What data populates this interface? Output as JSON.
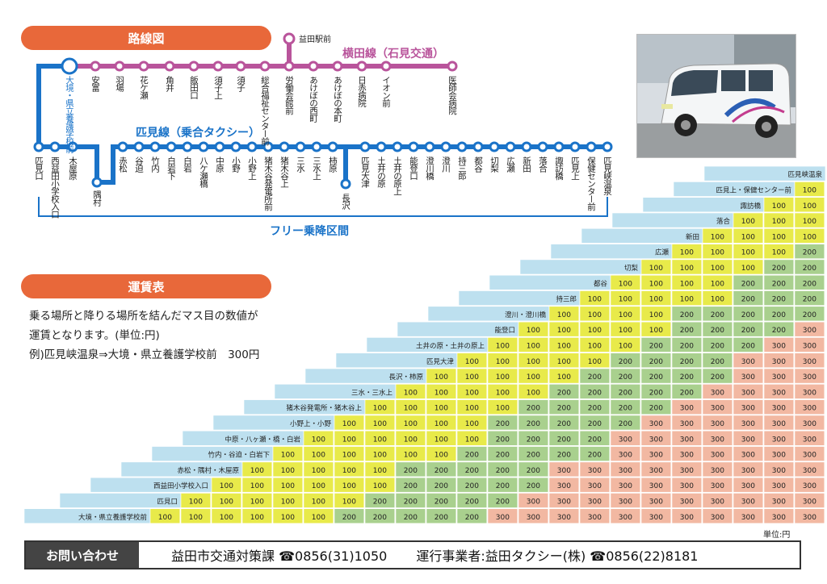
{
  "route_section": {
    "heading": "路線図",
    "yokota_line_title": "横田線（石見交通）",
    "hikimi_line_title": "匹見線（乗合タクシー）",
    "free_zone_label": "フリー乗降区間",
    "terminal_top": "益田駅前",
    "line_colors": {
      "hikimi": "#1a73c8",
      "yokota": "#b9549b"
    },
    "yokota_stops": [
      "大境・県立養護学校前",
      "安富",
      "羽場",
      "花ケ瀬",
      "角井",
      "飯田口",
      "須子上",
      "須子",
      "総合福祉センター前",
      "労働会館前",
      "あけぼの西町",
      "あけぼの本町",
      "日赤病院",
      "イオン前",
      "医師会病院"
    ],
    "hikimi_stops": [
      "匹見口",
      "西益田小学校入口",
      "木屋原",
      "隅村",
      "赤松",
      "谷迫",
      "竹内",
      "白岩下",
      "白岩",
      "八ケ瀬橋",
      "中原",
      "小野",
      "小野上",
      "猪木谷発電所前",
      "猪木谷上",
      "三水",
      "三水上",
      "柿原",
      "長沢",
      "匹見大津",
      "土井の原",
      "土井の原上",
      "能登口",
      "澄川橋",
      "澄川",
      "持三郎",
      "都谷",
      "切梨",
      "広瀬",
      "新田",
      "落合",
      "諏訪橋",
      "匹見上",
      "保健センター前",
      "匹見峡温泉"
    ]
  },
  "fare_section": {
    "heading": "運賃表",
    "note_line1": "乗る場所と降りる場所を結んだマス目の数値が",
    "note_line2": "運賃となります。(単位:円)",
    "example": "例)匹見峡温泉⇒大境・県立養護学校前　300円",
    "unit_label": "単位:円",
    "colors": {
      "label": "#bde0ef",
      "fare100": "#e8ea4a",
      "fare200": "#a9d08e",
      "fare300": "#f2b8a2"
    },
    "stations": [
      "大境・県立養護学校前",
      "匹見口",
      "西益田小学校入口",
      "赤松・隅村・木屋原",
      "竹内・谷迫・白岩下",
      "中原・八ヶ瀬・橋・白岩",
      "小野上・小野",
      "猪木谷発電所・猪木谷上",
      "三水・三水上",
      "長沢・柿原",
      "匹見大津",
      "土井の原・土井の原上",
      "能登口",
      "澄川・澄川橋",
      "持三郎",
      "都谷",
      "切梨",
      "広瀬",
      "新田",
      "落合",
      "諏訪橋",
      "匹見上・保健センター前",
      "匹見峡温泉"
    ],
    "fares": [
      [],
      [
        100
      ],
      [
        100,
        100
      ],
      [
        100,
        100,
        100
      ],
      [
        100,
        100,
        100,
        100
      ],
      [
        100,
        100,
        100,
        100,
        100
      ],
      [
        100,
        100,
        100,
        100,
        100,
        100
      ],
      [
        200,
        100,
        100,
        100,
        100,
        100,
        100
      ],
      [
        200,
        200,
        100,
        100,
        100,
        100,
        100,
        100
      ],
      [
        200,
        200,
        200,
        200,
        100,
        100,
        100,
        100,
        100
      ],
      [
        200,
        200,
        200,
        200,
        100,
        100,
        100,
        100,
        100,
        100
      ],
      [
        200,
        200,
        200,
        200,
        200,
        100,
        100,
        100,
        100,
        100,
        100
      ],
      [
        300,
        200,
        200,
        200,
        200,
        200,
        200,
        100,
        100,
        100,
        100,
        100
      ],
      [
        300,
        300,
        200,
        200,
        200,
        200,
        200,
        200,
        100,
        100,
        100,
        100,
        100
      ],
      [
        300,
        300,
        300,
        300,
        200,
        200,
        200,
        200,
        200,
        100,
        100,
        100,
        100,
        100
      ],
      [
        300,
        300,
        300,
        300,
        200,
        200,
        200,
        200,
        200,
        200,
        100,
        100,
        100,
        100,
        100
      ],
      [
        300,
        300,
        300,
        300,
        300,
        300,
        200,
        200,
        200,
        200,
        200,
        100,
        100,
        100,
        100,
        100
      ],
      [
        300,
        300,
        300,
        300,
        300,
        300,
        300,
        200,
        200,
        200,
        200,
        200,
        100,
        100,
        100,
        100,
        100
      ],
      [
        300,
        300,
        300,
        300,
        300,
        300,
        300,
        300,
        200,
        200,
        200,
        200,
        200,
        200,
        100,
        100,
        100,
        100
      ],
      [
        300,
        300,
        300,
        300,
        300,
        300,
        300,
        300,
        300,
        200,
        200,
        200,
        200,
        200,
        100,
        100,
        100,
        100,
        100
      ],
      [
        300,
        300,
        300,
        300,
        300,
        300,
        300,
        300,
        300,
        300,
        300,
        200,
        200,
        200,
        200,
        200,
        100,
        100,
        100,
        100
      ],
      [
        300,
        300,
        300,
        300,
        300,
        300,
        300,
        300,
        300,
        300,
        300,
        300,
        200,
        200,
        200,
        200,
        200,
        100,
        100,
        100,
        100
      ],
      [
        300,
        300,
        300,
        300,
        300,
        300,
        300,
        300,
        300,
        300,
        300,
        300,
        300,
        200,
        200,
        200,
        200,
        200,
        100,
        100,
        100,
        100
      ]
    ]
  },
  "footer": {
    "label": "お問い合わせ",
    "contact1": "益田市交通対策課 ☎0856(31)1050",
    "contact2": "運行事業者:益田タクシー(株) ☎0856(22)8181"
  }
}
